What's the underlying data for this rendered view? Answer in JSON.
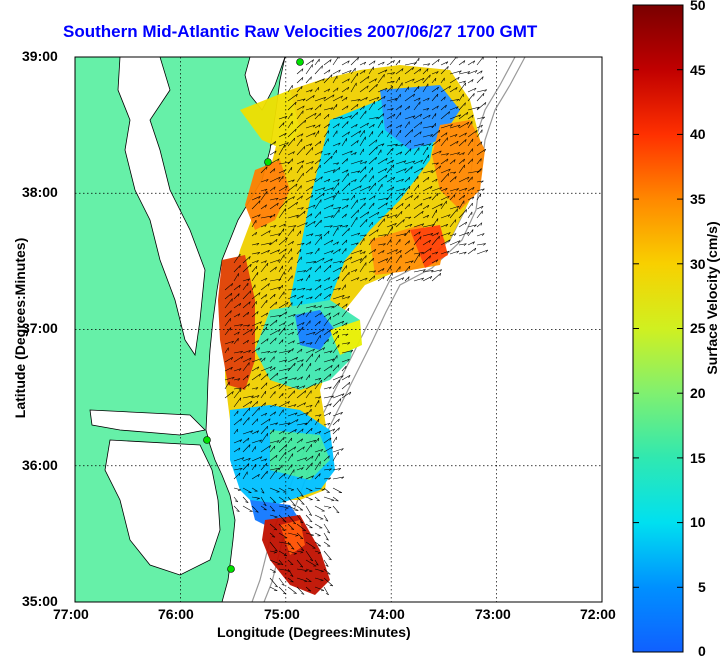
{
  "title": "Southern Mid-Atlantic Raw Velocities 2007/06/27 1700 GMT",
  "xlabel": "Longitude (Degrees:Minutes)",
  "ylabel": "Latitude (Degrees:Minutes)",
  "xticks": [
    "77:00",
    "76:00",
    "75:00",
    "74:00",
    "73:00",
    "72:00"
  ],
  "yticks": [
    "39:00",
    "38:00",
    "37:00",
    "36:00",
    "35:00"
  ],
  "colorbar": {
    "label": "Surface Velocity (cm/s)",
    "ticks": [
      "50",
      "45",
      "40",
      "35",
      "30",
      "25",
      "20",
      "15",
      "10",
      "5",
      "0"
    ],
    "range": [
      0,
      50
    ],
    "colors": [
      "#1060ff",
      "#00b0ff",
      "#00e8e0",
      "#40e8a0",
      "#a0f060",
      "#f0f000",
      "#ffb000",
      "#ff5000",
      "#e01000",
      "#800000"
    ]
  },
  "colors": {
    "land": "#66f0a8",
    "frame": "#000000",
    "title": "#0000ff",
    "station": "#00e000"
  },
  "chart_data": {
    "type": "heatmap",
    "title": "Southern Mid-Atlantic Raw Velocities 2007/06/27 1700 GMT",
    "xlabel": "Longitude (Degrees:Minutes)",
    "ylabel": "Latitude (Degrees:Minutes)",
    "xlim": [
      -77,
      -72
    ],
    "ylim": [
      35,
      39
    ],
    "value_label": "Surface Velocity (cm/s)",
    "value_range": [
      0,
      50
    ],
    "grid": true
  }
}
